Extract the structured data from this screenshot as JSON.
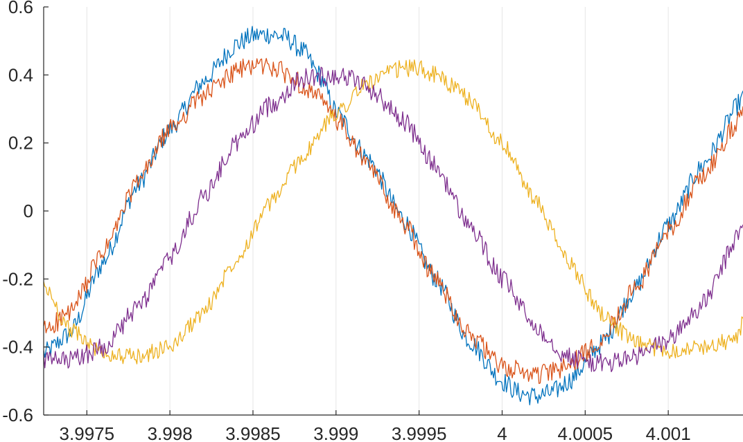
{
  "chart_data": {
    "type": "line",
    "title": "",
    "xlabel": "",
    "ylabel": "",
    "xlim": [
      3.99724,
      4.00145
    ],
    "ylim": [
      -0.6,
      0.6
    ],
    "x_ticks": [
      {
        "value": 3.9975,
        "label": "3.9975"
      },
      {
        "value": 3.998,
        "label": "3.998"
      },
      {
        "value": 3.9985,
        "label": "3.9985"
      },
      {
        "value": 3.999,
        "label": "3.999"
      },
      {
        "value": 3.9995,
        "label": "3.9995"
      },
      {
        "value": 4.0,
        "label": "4"
      },
      {
        "value": 4.0005,
        "label": "4.0005"
      },
      {
        "value": 4.001,
        "label": "4.001"
      }
    ],
    "y_ticks": [
      {
        "value": 0.6,
        "label": "0.6"
      },
      {
        "value": 0.4,
        "label": "0.4"
      },
      {
        "value": 0.2,
        "label": "0.2"
      },
      {
        "value": 0,
        "label": "0"
      },
      {
        "value": -0.2,
        "label": "-0.2"
      },
      {
        "value": -0.4,
        "label": "-0.4"
      },
      {
        "value": -0.6,
        "label": "-0.6"
      }
    ],
    "grid": "vertical",
    "legend": "none",
    "series": [
      {
        "color": "#0072BD",
        "noise": 0.03,
        "x": [
          3.99724,
          3.9974,
          3.9976,
          3.9978,
          3.998,
          3.9982,
          3.9984,
          3.9985,
          3.9986,
          3.9987,
          3.9988,
          3.9989,
          3.999,
          3.9992,
          3.9994,
          3.9996,
          3.9998,
          4.0,
          4.0001,
          4.0002,
          4.0003,
          4.0004,
          4.0006,
          4.0008,
          4.001,
          4.0012,
          4.00145
        ],
        "y": [
          -0.42,
          -0.36,
          -0.15,
          0.07,
          0.24,
          0.38,
          0.49,
          0.515,
          0.52,
          0.51,
          0.47,
          0.4,
          0.29,
          0.15,
          -0.02,
          -0.2,
          -0.38,
          -0.5,
          -0.535,
          -0.545,
          -0.535,
          -0.5,
          -0.39,
          -0.23,
          -0.04,
          0.13,
          0.33
        ]
      },
      {
        "color": "#D95319",
        "noise": 0.03,
        "x": [
          3.99724,
          3.9974,
          3.9976,
          3.9978,
          3.998,
          3.9982,
          3.9984,
          3.9985,
          3.9986,
          3.9987,
          3.9988,
          3.9989,
          3.999,
          3.9992,
          3.9994,
          3.9996,
          3.9998,
          4.0,
          4.0002,
          4.0003,
          4.0004,
          4.0005,
          4.0006,
          4.0008,
          4.001,
          4.0012,
          4.00145
        ],
        "y": [
          -0.35,
          -0.3,
          -0.12,
          0.08,
          0.24,
          0.34,
          0.41,
          0.43,
          0.425,
          0.405,
          0.37,
          0.33,
          0.27,
          0.13,
          -0.03,
          -0.2,
          -0.36,
          -0.46,
          -0.48,
          -0.475,
          -0.455,
          -0.42,
          -0.37,
          -0.23,
          -0.06,
          0.1,
          0.28
        ]
      },
      {
        "color": "#EDB120",
        "noise": 0.025,
        "x": [
          3.99724,
          3.9974,
          3.9976,
          3.9978,
          3.998,
          3.9982,
          3.9984,
          3.9986,
          3.9988,
          3.999,
          3.9992,
          3.9994,
          3.9995,
          3.9996,
          3.9998,
          4.0,
          4.0002,
          4.0004,
          4.0006,
          4.0008,
          4.001,
          4.0012,
          4.0014,
          4.00145
        ],
        "y": [
          -0.22,
          -0.35,
          -0.42,
          -0.43,
          -0.4,
          -0.3,
          -0.14,
          0.02,
          0.16,
          0.29,
          0.38,
          0.42,
          0.42,
          0.4,
          0.33,
          0.2,
          0.03,
          -0.15,
          -0.3,
          -0.39,
          -0.41,
          -0.4,
          -0.38,
          -0.33
        ]
      },
      {
        "color": "#7E2F8E",
        "noise": 0.03,
        "x": [
          3.99724,
          3.9974,
          3.9976,
          3.9978,
          3.998,
          3.9982,
          3.9984,
          3.9986,
          3.9988,
          3.999,
          3.9991,
          3.9992,
          3.9994,
          3.9996,
          3.9998,
          4.0,
          4.0002,
          4.0004,
          4.0006,
          4.0008,
          4.001,
          4.0012,
          4.00145
        ],
        "y": [
          -0.44,
          -0.44,
          -0.4,
          -0.29,
          -0.14,
          0.04,
          0.2,
          0.31,
          0.39,
          0.4,
          0.39,
          0.36,
          0.27,
          0.13,
          -0.04,
          -0.2,
          -0.34,
          -0.43,
          -0.45,
          -0.43,
          -0.38,
          -0.28,
          -0.05
        ]
      }
    ]
  }
}
